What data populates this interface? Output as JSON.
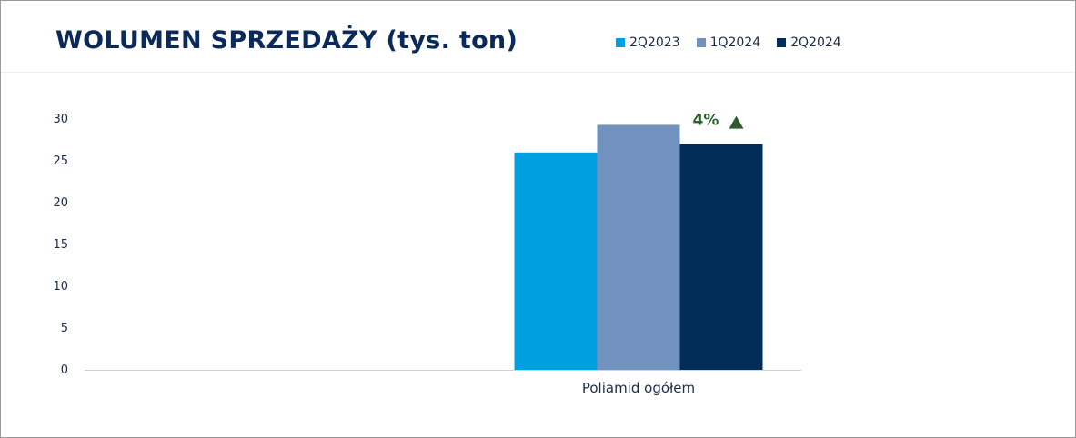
{
  "chart_data": {
    "type": "bar",
    "title": "WOLUMEN SPRZEDAŻY (tys. ton)",
    "categories": [
      "",
      "Poliamid ogółem"
    ],
    "series": [
      {
        "name": "2Q2023",
        "color": "#009fe0",
        "values": [
          0,
          26
        ]
      },
      {
        "name": "1Q2024",
        "color": "#7192bf",
        "values": [
          0,
          29.3
        ]
      },
      {
        "name": "2Q2024",
        "color": "#002e59",
        "values": [
          0,
          27
        ]
      }
    ],
    "y_ticks": [
      "0",
      "5",
      "10",
      "15",
      "20",
      "25",
      "30"
    ],
    "ylim": [
      0,
      30
    ],
    "grid": false,
    "legend_position": "top-right",
    "annotation": {
      "text": "4%",
      "category": "Poliamid ogółem",
      "series": "2Q2024",
      "marker": "triangle-up-icon",
      "color": "#2e5e2e"
    }
  }
}
